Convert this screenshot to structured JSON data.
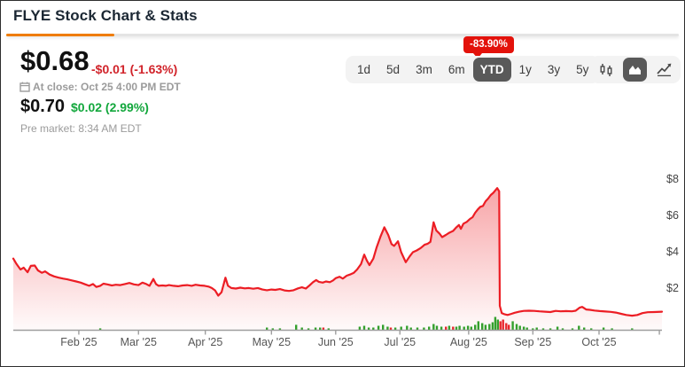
{
  "header": {
    "title": "FLYE Stock Chart & Stats"
  },
  "quote": {
    "price": "$0.68",
    "change": "-$0.01 (-1.63%)",
    "at_close": "At close: Oct 25 4:00 PM EDT",
    "pre_price": "$0.70",
    "pre_change": "$0.02 (2.99%)",
    "pre_label": "Pre market: 8:34 AM EDT"
  },
  "toolbar": {
    "badge": "-83.90%",
    "ranges": [
      "1d",
      "5d",
      "3m",
      "6m",
      "YTD",
      "1y",
      "3y",
      "5y"
    ],
    "selected_range": "YTD",
    "chart_types": [
      "candlestick",
      "area",
      "line"
    ],
    "selected_type": "area"
  },
  "colors": {
    "accent_orange": "#ef7c00",
    "badge_red": "#e3120b",
    "line_red": "#ec1d24",
    "change_red": "#d1232a",
    "change_green": "#12a73c",
    "volume_green": "#33a02c",
    "volume_red": "#e8262c",
    "selected_btn": "#595959",
    "axis_gray": "#9e9e9e",
    "label_gray": "#555555"
  },
  "chart_data": {
    "type": "area",
    "unit": "USD",
    "ylim": [
      0,
      8.8
    ],
    "grid": false,
    "legend": "none",
    "y_ticks": [
      {
        "label": "$2",
        "value": 2
      },
      {
        "label": "$4",
        "value": 4
      },
      {
        "label": "$6",
        "value": 6
      },
      {
        "label": "$8",
        "value": 8
      }
    ],
    "x_ticks": [
      {
        "label": "Feb '25",
        "d": 0.101
      },
      {
        "label": "Mar '25",
        "d": 0.193
      },
      {
        "label": "Apr '25",
        "d": 0.296
      },
      {
        "label": "May '25",
        "d": 0.398
      },
      {
        "label": "Jun '25",
        "d": 0.497
      },
      {
        "label": "Jul '25",
        "d": 0.596
      },
      {
        "label": "Aug '25",
        "d": 0.702
      },
      {
        "label": "Sep '25",
        "d": 0.801
      },
      {
        "label": "Oct '25",
        "d": 0.903
      },
      {
        "label": "",
        "d": 0.996
      }
    ],
    "series": [
      [
        0,
        3.6
      ],
      [
        0.005,
        3.3
      ],
      [
        0.011,
        3.0
      ],
      [
        0.016,
        3.1
      ],
      [
        0.022,
        2.85
      ],
      [
        0.027,
        3.2
      ],
      [
        0.033,
        3.22
      ],
      [
        0.038,
        2.95
      ],
      [
        0.044,
        2.82
      ],
      [
        0.049,
        2.9
      ],
      [
        0.056,
        2.72
      ],
      [
        0.063,
        2.62
      ],
      [
        0.07,
        2.55
      ],
      [
        0.077,
        2.5
      ],
      [
        0.083,
        2.46
      ],
      [
        0.09,
        2.4
      ],
      [
        0.097,
        2.34
      ],
      [
        0.104,
        2.28
      ],
      [
        0.111,
        2.18
      ],
      [
        0.117,
        2.1
      ],
      [
        0.123,
        2.2
      ],
      [
        0.128,
        2.04
      ],
      [
        0.134,
        2.1
      ],
      [
        0.139,
        2.22
      ],
      [
        0.145,
        2.18
      ],
      [
        0.152,
        2.12
      ],
      [
        0.158,
        2.16
      ],
      [
        0.165,
        2.14
      ],
      [
        0.172,
        2.2
      ],
      [
        0.179,
        2.26
      ],
      [
        0.186,
        2.18
      ],
      [
        0.193,
        2.14
      ],
      [
        0.199,
        2.28
      ],
      [
        0.205,
        2.2
      ],
      [
        0.21,
        2.1
      ],
      [
        0.216,
        2.48
      ],
      [
        0.22,
        2.2
      ],
      [
        0.224,
        2.1
      ],
      [
        0.23,
        2.12
      ],
      [
        0.235,
        2.1
      ],
      [
        0.24,
        2.14
      ],
      [
        0.247,
        2.1
      ],
      [
        0.254,
        2.08
      ],
      [
        0.261,
        2.12
      ],
      [
        0.268,
        2.14
      ],
      [
        0.275,
        2.1
      ],
      [
        0.281,
        2.16
      ],
      [
        0.288,
        2.12
      ],
      [
        0.295,
        2.1
      ],
      [
        0.301,
        2.06
      ],
      [
        0.306,
        1.98
      ],
      [
        0.311,
        1.85
      ],
      [
        0.316,
        1.56
      ],
      [
        0.321,
        1.75
      ],
      [
        0.327,
        2.55
      ],
      [
        0.331,
        2.1
      ],
      [
        0.336,
        1.98
      ],
      [
        0.343,
        1.95
      ],
      [
        0.35,
        2.0
      ],
      [
        0.357,
        1.96
      ],
      [
        0.363,
        1.98
      ],
      [
        0.37,
        1.94
      ],
      [
        0.377,
        1.98
      ],
      [
        0.384,
        1.9
      ],
      [
        0.391,
        1.86
      ],
      [
        0.398,
        1.9
      ],
      [
        0.404,
        1.88
      ],
      [
        0.411,
        1.92
      ],
      [
        0.418,
        1.85
      ],
      [
        0.425,
        1.82
      ],
      [
        0.432,
        1.86
      ],
      [
        0.439,
        1.96
      ],
      [
        0.445,
        2.02
      ],
      [
        0.451,
        1.95
      ],
      [
        0.456,
        2.1
      ],
      [
        0.462,
        2.3
      ],
      [
        0.467,
        2.42
      ],
      [
        0.471,
        2.32
      ],
      [
        0.477,
        2.28
      ],
      [
        0.482,
        2.34
      ],
      [
        0.488,
        2.3
      ],
      [
        0.493,
        2.4
      ],
      [
        0.497,
        2.52
      ],
      [
        0.503,
        2.6
      ],
      [
        0.508,
        2.5
      ],
      [
        0.514,
        2.66
      ],
      [
        0.519,
        2.72
      ],
      [
        0.525,
        2.82
      ],
      [
        0.53,
        3.0
      ],
      [
        0.536,
        3.3
      ],
      [
        0.541,
        3.82
      ],
      [
        0.545,
        3.5
      ],
      [
        0.549,
        3.24
      ],
      [
        0.555,
        3.6
      ],
      [
        0.56,
        4.2
      ],
      [
        0.566,
        4.8
      ],
      [
        0.572,
        5.32
      ],
      [
        0.578,
        4.9
      ],
      [
        0.583,
        4.4
      ],
      [
        0.587,
        4.3
      ],
      [
        0.593,
        4.55
      ],
      [
        0.598,
        3.95
      ],
      [
        0.605,
        3.4
      ],
      [
        0.611,
        3.72
      ],
      [
        0.616,
        3.95
      ],
      [
        0.622,
        4.05
      ],
      [
        0.628,
        4.18
      ],
      [
        0.634,
        4.36
      ],
      [
        0.639,
        4.42
      ],
      [
        0.643,
        4.52
      ],
      [
        0.648,
        5.6
      ],
      [
        0.652,
        5.15
      ],
      [
        0.657,
        4.98
      ],
      [
        0.661,
        4.78
      ],
      [
        0.667,
        4.9
      ],
      [
        0.672,
        5.02
      ],
      [
        0.678,
        5.12
      ],
      [
        0.683,
        5.32
      ],
      [
        0.687,
        5.45
      ],
      [
        0.69,
        5.24
      ],
      [
        0.694,
        5.52
      ],
      [
        0.699,
        5.62
      ],
      [
        0.704,
        5.78
      ],
      [
        0.708,
        5.88
      ],
      [
        0.712,
        6.12
      ],
      [
        0.716,
        6.3
      ],
      [
        0.72,
        6.45
      ],
      [
        0.724,
        6.5
      ],
      [
        0.728,
        6.75
      ],
      [
        0.732,
        6.9
      ],
      [
        0.736,
        7.1
      ],
      [
        0.74,
        7.22
      ],
      [
        0.743,
        7.35
      ],
      [
        0.746,
        7.48
      ],
      [
        0.749,
        7.3
      ],
      [
        0.75,
        1.0
      ],
      [
        0.753,
        0.6
      ],
      [
        0.757,
        0.54
      ],
      [
        0.762,
        0.5
      ],
      [
        0.768,
        0.56
      ],
      [
        0.773,
        0.62
      ],
      [
        0.78,
        0.68
      ],
      [
        0.787,
        0.72
      ],
      [
        0.795,
        0.73
      ],
      [
        0.803,
        0.72
      ],
      [
        0.811,
        0.7
      ],
      [
        0.82,
        0.68
      ],
      [
        0.828,
        0.66
      ],
      [
        0.836,
        0.72
      ],
      [
        0.844,
        0.7
      ],
      [
        0.852,
        0.71
      ],
      [
        0.861,
        0.7
      ],
      [
        0.867,
        0.73
      ],
      [
        0.873,
        0.9
      ],
      [
        0.877,
        0.94
      ],
      [
        0.883,
        0.8
      ],
      [
        0.889,
        0.78
      ],
      [
        0.896,
        0.74
      ],
      [
        0.904,
        0.71
      ],
      [
        0.913,
        0.69
      ],
      [
        0.921,
        0.67
      ],
      [
        0.929,
        0.63
      ],
      [
        0.937,
        0.56
      ],
      [
        0.945,
        0.5
      ],
      [
        0.954,
        0.46
      ],
      [
        0.962,
        0.5
      ],
      [
        0.97,
        0.6
      ],
      [
        0.978,
        0.65
      ],
      [
        0.988,
        0.66
      ],
      [
        1.0,
        0.68
      ]
    ],
    "volume": [
      [
        0.134,
        0.13,
        "g"
      ],
      [
        0.391,
        0.19,
        "g"
      ],
      [
        0.4,
        0.13,
        "g"
      ],
      [
        0.411,
        0.13,
        "g"
      ],
      [
        0.436,
        0.38,
        "g"
      ],
      [
        0.445,
        0.19,
        "g"
      ],
      [
        0.455,
        0.13,
        "g"
      ],
      [
        0.466,
        0.19,
        "g"
      ],
      [
        0.473,
        0.19,
        "g"
      ],
      [
        0.478,
        0.19,
        "r"
      ],
      [
        0.486,
        0.13,
        "g"
      ],
      [
        0.534,
        0.25,
        "g"
      ],
      [
        0.541,
        0.31,
        "g"
      ],
      [
        0.548,
        0.19,
        "g"
      ],
      [
        0.555,
        0.19,
        "g"
      ],
      [
        0.563,
        0.31,
        "g"
      ],
      [
        0.57,
        0.38,
        "g"
      ],
      [
        0.577,
        0.25,
        "g"
      ],
      [
        0.582,
        0.19,
        "r"
      ],
      [
        0.589,
        0.19,
        "g"
      ],
      [
        0.598,
        0.25,
        "g"
      ],
      [
        0.607,
        0.31,
        "g"
      ],
      [
        0.613,
        0.19,
        "g"
      ],
      [
        0.623,
        0.19,
        "g"
      ],
      [
        0.633,
        0.19,
        "g"
      ],
      [
        0.641,
        0.25,
        "g"
      ],
      [
        0.648,
        0.44,
        "g"
      ],
      [
        0.653,
        0.31,
        "g"
      ],
      [
        0.66,
        0.25,
        "g"
      ],
      [
        0.667,
        0.25,
        "r"
      ],
      [
        0.672,
        0.31,
        "g"
      ],
      [
        0.678,
        0.25,
        "r"
      ],
      [
        0.683,
        0.25,
        "g"
      ],
      [
        0.688,
        0.31,
        "g"
      ],
      [
        0.695,
        0.25,
        "g"
      ],
      [
        0.701,
        0.31,
        "g"
      ],
      [
        0.706,
        0.25,
        "g"
      ],
      [
        0.712,
        0.38,
        "g"
      ],
      [
        0.717,
        0.63,
        "g"
      ],
      [
        0.723,
        0.5,
        "g"
      ],
      [
        0.728,
        0.38,
        "g"
      ],
      [
        0.734,
        0.44,
        "g"
      ],
      [
        0.739,
        0.56,
        "g"
      ],
      [
        0.743,
        0.94,
        "g"
      ],
      [
        0.747,
        0.75,
        "g"
      ],
      [
        0.751,
        0.63,
        "r"
      ],
      [
        0.755,
        0.75,
        "r"
      ],
      [
        0.76,
        0.5,
        "r"
      ],
      [
        0.764,
        0.38,
        "r"
      ],
      [
        0.77,
        0.63,
        "g"
      ],
      [
        0.776,
        0.44,
        "g"
      ],
      [
        0.781,
        0.31,
        "g"
      ],
      [
        0.787,
        0.25,
        "g"
      ],
      [
        0.792,
        0.19,
        "g"
      ],
      [
        0.801,
        0.13,
        "g"
      ],
      [
        0.807,
        0.19,
        "g"
      ],
      [
        0.817,
        0.13,
        "g"
      ],
      [
        0.828,
        0.13,
        "g"
      ],
      [
        0.839,
        0.25,
        "g"
      ],
      [
        0.847,
        0.13,
        "g"
      ],
      [
        0.862,
        0.13,
        "g"
      ],
      [
        0.872,
        0.31,
        "g"
      ],
      [
        0.88,
        0.19,
        "g"
      ],
      [
        0.891,
        0.13,
        "g"
      ],
      [
        0.91,
        0.19,
        "g"
      ],
      [
        0.923,
        0.13,
        "g"
      ],
      [
        0.954,
        0.13,
        "g"
      ]
    ]
  }
}
